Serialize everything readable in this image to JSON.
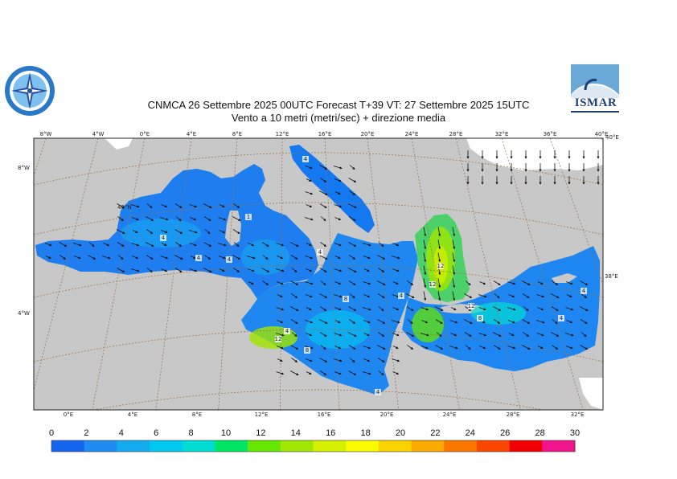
{
  "title": {
    "line1": "CNMCA 26 Settembre 2025 00UTC Forecast T+39 VT: 27 Settembre 2025 15UTC",
    "line2": "Vento a 10 metri (metri/sec) + direzione media"
  },
  "logos": {
    "left": "compass-logo",
    "right_text": "ISMAR"
  },
  "axis_labels": {
    "top": [
      "8°W",
      "4°W",
      "0°E",
      "4°E",
      "8°E",
      "12°E",
      "16°E",
      "20°E",
      "24°E",
      "28°E",
      "32°E",
      "36°E",
      "40°E"
    ],
    "bottom": [
      "0°E",
      "4°E",
      "8°E",
      "12°E",
      "16°E",
      "20°E",
      "24°E",
      "28°E",
      "32°E"
    ],
    "left": [
      "8°W",
      "40°N",
      "4°W"
    ],
    "right": [
      "40°E",
      "38°E"
    ]
  },
  "contour_labels": [
    "4",
    "4",
    "4",
    "4",
    "1",
    "4",
    "8",
    "4",
    "4",
    "12",
    "12",
    "12",
    "8",
    "12",
    "4",
    "8",
    "4",
    "4"
  ],
  "legend": {
    "ticks": [
      "0",
      "2",
      "4",
      "6",
      "8",
      "10",
      "12",
      "14",
      "16",
      "18",
      "20",
      "22",
      "24",
      "26",
      "28",
      "30"
    ],
    "colors": [
      "#1464f0",
      "#1e8cf0",
      "#14aaf0",
      "#00c8f0",
      "#00dcd2",
      "#00e664",
      "#64e600",
      "#a0e600",
      "#d2f000",
      "#fafa00",
      "#fad200",
      "#faaa00",
      "#fa7800",
      "#fa4600",
      "#f00000",
      "#f0148c"
    ]
  },
  "colors": {
    "land": "#c8c8c8",
    "sea_low": "#1464f0",
    "graticule": "#9a7040"
  }
}
